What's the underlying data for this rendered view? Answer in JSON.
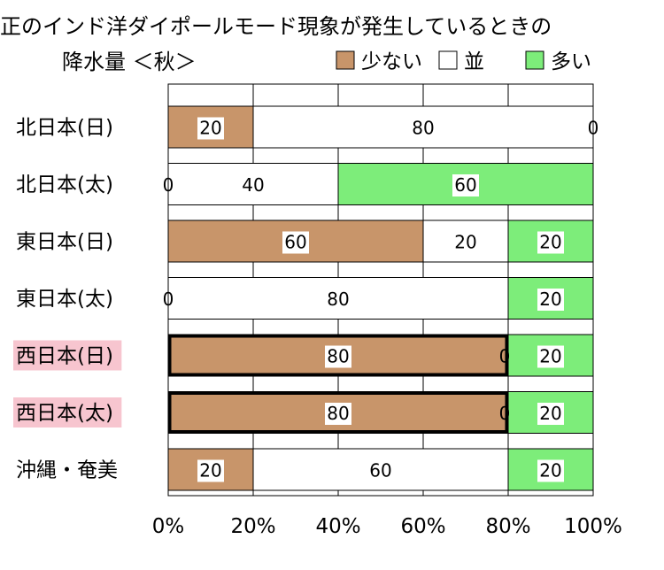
{
  "chart_data": {
    "type": "bar",
    "orientation": "horizontal",
    "stacked": true,
    "title_line1": "正のインド洋ダイポールモード現象が発生しているときの",
    "title_line2": "降水量 ＜秋＞",
    "categories": [
      "北日本(日)",
      "北日本(太)",
      "東日本(日)",
      "東日本(太)",
      "西日本(日)",
      "西日本(太)",
      "沖縄・奄美"
    ],
    "highlighted_categories": [
      "西日本(日)",
      "西日本(太)"
    ],
    "series": [
      {
        "name": "少ない",
        "color": "#c8956a",
        "values": [
          20,
          0,
          60,
          0,
          80,
          80,
          20
        ]
      },
      {
        "name": "並",
        "color": "#ffffff",
        "values": [
          80,
          40,
          20,
          80,
          0,
          0,
          60
        ]
      },
      {
        "name": "多い",
        "color": "#7ded7a",
        "values": [
          0,
          60,
          20,
          20,
          20,
          20,
          20
        ]
      }
    ],
    "xticks": [
      "0%",
      "20%",
      "40%",
      "60%",
      "80%",
      "100%"
    ],
    "xlim": [
      0,
      100
    ],
    "grid": true,
    "legend_position": "top-right",
    "highlight_label_color": "#f7c5cf",
    "emphasis_border_series": "少ない",
    "emphasis_border_rows": [
      "西日本(日)",
      "西日本(太)"
    ]
  }
}
